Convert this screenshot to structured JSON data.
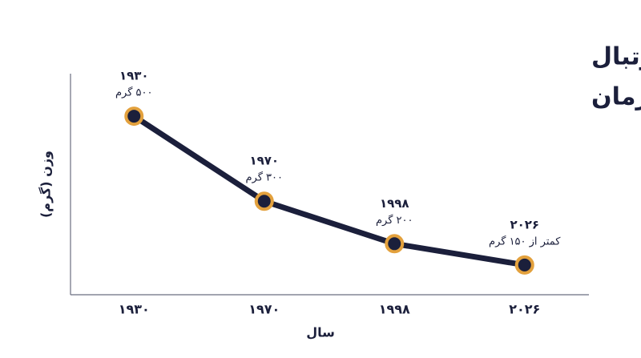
{
  "chart_data": {
    "type": "line",
    "title": [
      "مقایسه وزن کفش‌های فوتبال",
      "در طول زمان"
    ],
    "x_label": "سال",
    "y_label": "وزن (گرم)",
    "categories": [
      "۱۹۳۰",
      "۱۹۷۰",
      "۱۹۹۸",
      "۲۰۲۶"
    ],
    "values": [
      500,
      300,
      200,
      150
    ],
    "value_labels": [
      "۵۰۰ گرم",
      "۳۰۰ گرم",
      "۲۰۰ گرم",
      "کمتر از ۱۵۰ گرم"
    ],
    "color": "#1b1f3b",
    "marker_ring_color": "#e3a13d",
    "ylim": [
      80,
      600
    ]
  }
}
